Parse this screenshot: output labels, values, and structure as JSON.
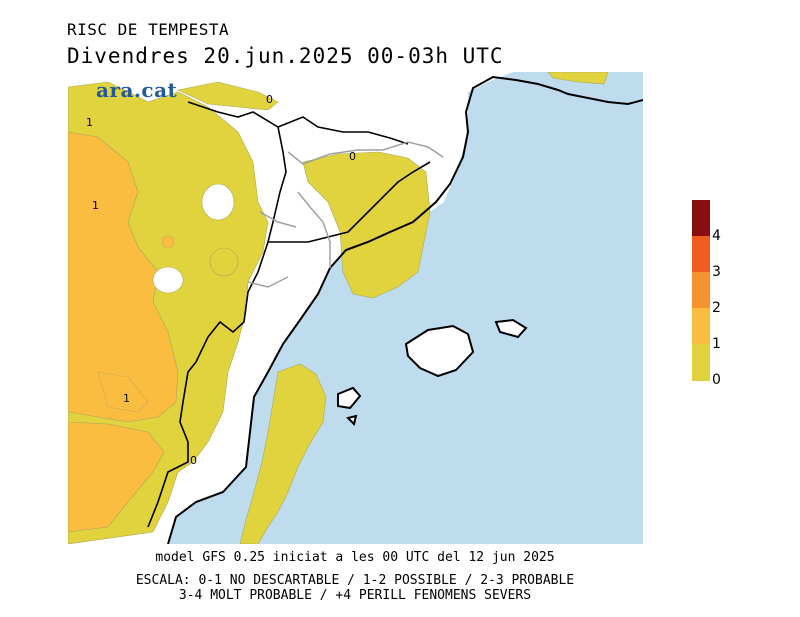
{
  "header": {
    "title": "RISC DE TEMPESTA",
    "subtitle": "Divendres  20.jun.2025 00-03h UTC"
  },
  "brand": {
    "logo_text": "ara.cat"
  },
  "map": {
    "contour_labels": [
      "1",
      "1",
      "1",
      "0",
      "0",
      "0"
    ],
    "colors": {
      "sea": "#bedcee",
      "land_0": "#ffffff",
      "level_0_1": "#e1d33e",
      "level_1_2": "#fbbd40",
      "level_2_3": "#f79231",
      "level_3_4": "#ee5c22",
      "level_4_plus": "#880e10"
    }
  },
  "legend": {
    "labels": [
      "4",
      "3",
      "2",
      "1",
      "0"
    ],
    "colors": [
      "#880e10",
      "#ee5c22",
      "#f79231",
      "#fbbd40",
      "#e1d33e"
    ]
  },
  "footer": {
    "model_line": "model GFS 0.25 iniciat a les 00 UTC del 12 jun 2025",
    "scale_line1": "ESCALA: 0-1 NO DESCARTABLE / 1-2 POSSIBLE / 2-3 PROBABLE",
    "scale_line2": "3-4 MOLT PROBABLE / +4 PERILL FENOMENS SEVERS"
  }
}
